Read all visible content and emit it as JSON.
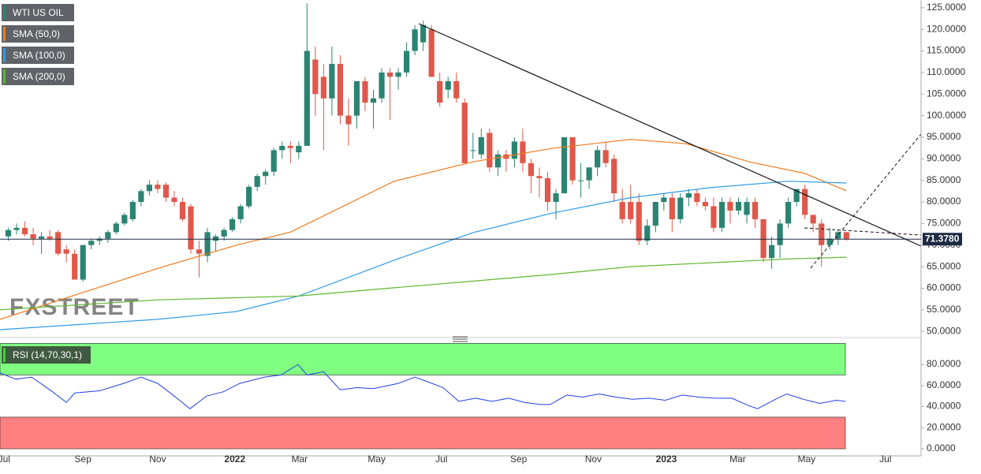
{
  "chart_data": {
    "type": "candlestick",
    "title": "WTI US OIL",
    "watermark": "FXSTREET",
    "xlim": [
      -1,
      110
    ],
    "xticks": [
      {
        "value": -0.5,
        "label": "Jul"
      },
      {
        "value": 9,
        "label": "Sep"
      },
      {
        "value": 18,
        "label": "Nov"
      },
      {
        "value": 27.3,
        "label": "2022"
      },
      {
        "value": 35.1,
        "label": "Mar"
      },
      {
        "value": 44.4,
        "label": "May"
      },
      {
        "value": 52.2,
        "label": "Jul"
      },
      {
        "value": 61.5,
        "label": "Sep"
      },
      {
        "value": 70.5,
        "label": "Nov"
      },
      {
        "value": 79.3,
        "label": "2023"
      },
      {
        "value": 87.9,
        "label": "Mar"
      },
      {
        "value": 96.2,
        "label": "May"
      },
      {
        "value": 105.7,
        "label": "Jul"
      }
    ],
    "ylim": [
      49.3,
      126.8
    ],
    "yticks": [
      {
        "value": 50,
        "label": "50.0000"
      },
      {
        "value": 55,
        "label": "55.0000"
      },
      {
        "value": 60,
        "label": "60.0000"
      },
      {
        "value": 65,
        "label": "65.0000"
      },
      {
        "value": 70,
        "label": "70.0000"
      },
      {
        "value": 75,
        "label": "75.0000"
      },
      {
        "value": 80,
        "label": "80.0000"
      },
      {
        "value": 85,
        "label": "85.0000"
      },
      {
        "value": 90,
        "label": "90.0000"
      },
      {
        "value": 95,
        "label": "95.0000"
      },
      {
        "value": 100,
        "label": "100.0000"
      },
      {
        "value": 105,
        "label": "105.0000"
      },
      {
        "value": 110,
        "label": "110.0000"
      },
      {
        "value": 115,
        "label": "115.0000"
      },
      {
        "value": 120,
        "label": "120.0000"
      },
      {
        "value": 125,
        "label": "125.0000"
      }
    ],
    "colors": {
      "up": "#2b8472",
      "down": "#e0584b"
    },
    "candles": [
      [
        72,
        74,
        71,
        73.5
      ],
      [
        73.5,
        75,
        72.5,
        74
      ],
      [
        74,
        75.5,
        72,
        72.5
      ],
      [
        72.5,
        74,
        70,
        71.5
      ],
      [
        71.5,
        73,
        68,
        72
      ],
      [
        72,
        73.5,
        71,
        71.5
      ],
      [
        73,
        73.5,
        67.5,
        68
      ],
      [
        69,
        70,
        66,
        68
      ],
      [
        68,
        69,
        62,
        62
      ],
      [
        62,
        70,
        61.5,
        70
      ],
      [
        70,
        71.5,
        69,
        71
      ],
      [
        71,
        72,
        70,
        71.5
      ],
      [
        71.5,
        73.5,
        70.5,
        73
      ],
      [
        73,
        75.5,
        72.5,
        75
      ],
      [
        75,
        77.5,
        74.5,
        77
      ],
      [
        76,
        80.5,
        75.5,
        80
      ],
      [
        80,
        83,
        79,
        82.5
      ],
      [
        82.5,
        85,
        81.5,
        84
      ],
      [
        84,
        85,
        82,
        83
      ],
      [
        84,
        84.5,
        80,
        81
      ],
      [
        81,
        82.5,
        79,
        80
      ],
      [
        80,
        81,
        75.5,
        76
      ],
      [
        79,
        79.5,
        68,
        69
      ],
      [
        69,
        71,
        62.5,
        68
      ],
      [
        67.5,
        74,
        66,
        73
      ],
      [
        71,
        72.5,
        68.5,
        72
      ],
      [
        72,
        74,
        71,
        73.5
      ],
      [
        73.5,
        76.5,
        73,
        76
      ],
      [
        76,
        79.5,
        75,
        79
      ],
      [
        79,
        84,
        78.5,
        83.5
      ],
      [
        83.5,
        86.5,
        82.5,
        86
      ],
      [
        86,
        87.5,
        84,
        87
      ],
      [
        87,
        92.5,
        86,
        92
      ],
      [
        92,
        94,
        90,
        93
      ],
      [
        93,
        94,
        89,
        92.5
      ],
      [
        91.5,
        94,
        90,
        93
      ],
      [
        93,
        126,
        93,
        115
      ],
      [
        113,
        116,
        100,
        105
      ],
      [
        109,
        112,
        92,
        104
      ],
      [
        104,
        116,
        100,
        112
      ],
      [
        112,
        114,
        98,
        100
      ],
      [
        100,
        104,
        93,
        98
      ],
      [
        100,
        108,
        97,
        108
      ],
      [
        108,
        109,
        101,
        103
      ],
      [
        103,
        106,
        97,
        104
      ],
      [
        104,
        111,
        103,
        110
      ],
      [
        110,
        111,
        99,
        109
      ],
      [
        109,
        111,
        106,
        110
      ],
      [
        110,
        117,
        109,
        115
      ],
      [
        115,
        121,
        114,
        120
      ],
      [
        117,
        122,
        115,
        121
      ],
      [
        120,
        121,
        109,
        109
      ],
      [
        108,
        110,
        102,
        103
      ],
      [
        106,
        109,
        104,
        108
      ],
      [
        108,
        110,
        103,
        104
      ],
      [
        103,
        104,
        89,
        89
      ],
      [
        92,
        96,
        90,
        92
      ],
      [
        91,
        97,
        90,
        95
      ],
      [
        96,
        97,
        87,
        88
      ],
      [
        88,
        92,
        86,
        91
      ],
      [
        91,
        92,
        87,
        90
      ],
      [
        90,
        95,
        88,
        94
      ],
      [
        94,
        97,
        87,
        89
      ],
      [
        89,
        90,
        82,
        86
      ],
      [
        86,
        88,
        81,
        85.5
      ],
      [
        85.5,
        87,
        78,
        80
      ],
      [
        80,
        83,
        76,
        82
      ],
      [
        82,
        95,
        82,
        95
      ],
      [
        95,
        95,
        84,
        85
      ],
      [
        85,
        89,
        81,
        85
      ],
      [
        85,
        88,
        83,
        88
      ],
      [
        88,
        93,
        86,
        92
      ],
      [
        92,
        94,
        88,
        89
      ],
      [
        90,
        91,
        80,
        82
      ],
      [
        80,
        83,
        75,
        76
      ],
      [
        80,
        84,
        75,
        76
      ],
      [
        80,
        82,
        70,
        71
      ],
      [
        71,
        76,
        70,
        74.5
      ],
      [
        74.5,
        80,
        73,
        80
      ],
      [
        80,
        82,
        78,
        81
      ],
      [
        81,
        82,
        73,
        76
      ],
      [
        76,
        82,
        75,
        81
      ],
      [
        81,
        83,
        79,
        82
      ],
      [
        82,
        83,
        79,
        80
      ],
      [
        80,
        81,
        78,
        79
      ],
      [
        79,
        81,
        73,
        74
      ],
      [
        74,
        81,
        73,
        80
      ],
      [
        80,
        81,
        75,
        78
      ],
      [
        78,
        81,
        77,
        80
      ],
      [
        77,
        81,
        75,
        80
      ],
      [
        80,
        81,
        74,
        76
      ],
      [
        76,
        76,
        66,
        67
      ],
      [
        67,
        72,
        64.5,
        70
      ],
      [
        70,
        76,
        67,
        75
      ],
      [
        75,
        81,
        74,
        80
      ],
      [
        80,
        83,
        79,
        83
      ],
      [
        83,
        84,
        76,
        77
      ],
      [
        77,
        77,
        73,
        75
      ],
      [
        75,
        76,
        65,
        70
      ],
      [
        70,
        74,
        69,
        71.5
      ],
      [
        71.5,
        73.5,
        70,
        73
      ],
      [
        73,
        73,
        71,
        71.4
      ]
    ],
    "series": [
      {
        "name": "SMA (50,0)",
        "color": "#f07a1c",
        "x": [
          -1,
          18,
          27.5,
          34,
          46.5,
          56,
          65.5,
          75,
          81.7,
          89.3,
          96,
          101
        ],
        "values": [
          52.8,
          64.6,
          70,
          73,
          84.8,
          89.3,
          92.4,
          94.5,
          93.5,
          89.3,
          86.6,
          82.6
        ]
      },
      {
        "name": "SMA (100,0)",
        "color": "#2e9be6",
        "x": [
          -1,
          18,
          27.5,
          35,
          46.5,
          56,
          65.5,
          75,
          84.5,
          94,
          101
        ],
        "values": [
          50.4,
          52.8,
          54.6,
          58.2,
          66.5,
          72.9,
          77.4,
          81,
          83.3,
          84.8,
          84.4
        ]
      },
      {
        "name": "SMA (200,0)",
        "color": "#5cb82e",
        "x": [
          -1,
          18,
          35,
          46.5,
          65.5,
          75,
          94,
          101
        ],
        "values": [
          55,
          57.3,
          58.2,
          60.1,
          63.2,
          65,
          66.8,
          67.2
        ]
      }
    ],
    "last_price": 71.378,
    "last_price_label": "71.3780",
    "rsi": {
      "name": "RSI (14,70,30,1)",
      "color": "#2040e8",
      "overbought": 70,
      "oversold": 30,
      "ylim": [
        -6.7,
        101
      ],
      "yticks": [
        {
          "value": 0,
          "label": "0.0000"
        },
        {
          "value": 20,
          "label": "20.0000"
        },
        {
          "value": 40,
          "label": "40.0000"
        },
        {
          "value": 60,
          "label": "60.0000"
        },
        {
          "value": 80,
          "label": "80.0000"
        }
      ],
      "x": [
        -1,
        0.9,
        2.8,
        5,
        7,
        8,
        11,
        13.9,
        16,
        18,
        20,
        21.9,
        23.9,
        25.9,
        27.9,
        30.9,
        32.9,
        34.9,
        36,
        38,
        40,
        42,
        44,
        47,
        49,
        50.4,
        52.4,
        54.3,
        56.3,
        58.3,
        60.3,
        62.2,
        64.2,
        65.3,
        67.3,
        69.2,
        71.2,
        73.2,
        75.2,
        77.2,
        79.2,
        81.2,
        83.2,
        85.2,
        87.2,
        89.2,
        90.3,
        92.7,
        93.8,
        95.8,
        97.8,
        99.8,
        100.9
      ],
      "values": [
        72,
        66,
        68,
        56,
        44,
        53,
        55,
        62,
        68,
        62,
        50,
        38,
        50,
        54,
        62,
        68,
        70,
        80,
        70,
        73,
        56,
        58,
        57,
        62,
        68,
        64,
        58,
        45,
        48,
        45,
        48,
        44,
        42,
        42,
        51,
        49,
        52,
        49,
        47,
        48,
        46,
        51,
        49,
        48,
        48,
        41,
        38,
        48,
        52,
        47,
        43,
        46,
        45
      ]
    }
  }
}
